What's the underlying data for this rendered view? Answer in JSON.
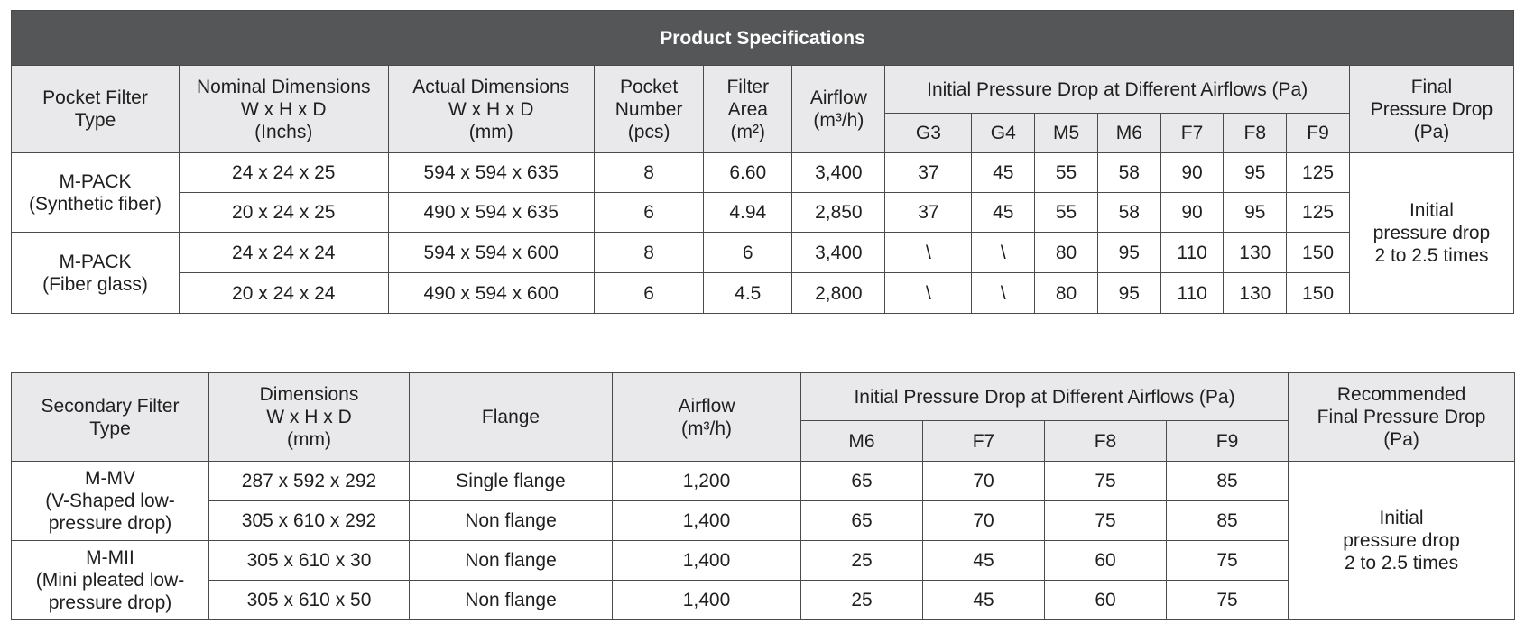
{
  "pocket_table": {
    "title": "Product Specifications",
    "headers": {
      "type": "Pocket Filter\nType",
      "nominal_dimensions": "Nominal Dimensions\nW x H x D\n(Inchs)",
      "actual_dimensions": "Actual Dimensions\nW x H x D\n(mm)",
      "pocket_number": "Pocket\nNumber\n(pcs)",
      "filter_area": "Filter\nArea\n(m²)",
      "airflow": "Airflow\n(m³/h)",
      "initial_pressure_drop": "Initial Pressure Drop at Different Airflows (Pa)",
      "final_pressure_drop": "Final\nPressure Drop\n(Pa)",
      "grades": [
        "G3",
        "G4",
        "M5",
        "M6",
        "F7",
        "F8",
        "F9"
      ]
    },
    "groups": [
      {
        "type": "M-PACK\n(Synthetic fiber)"
      },
      {
        "type": "M-PACK\n(Fiber glass)"
      }
    ],
    "rows": [
      {
        "nominal": "24 x 24 x 25",
        "actual": "594 x 594 x 635",
        "pockets": "8",
        "area": "6.60",
        "airflow": "3,400",
        "drops": [
          "37",
          "45",
          "55",
          "58",
          "90",
          "95",
          "125"
        ]
      },
      {
        "nominal": "20 x 24 x 25",
        "actual": "490 x 594 x 635",
        "pockets": "6",
        "area": "4.94",
        "airflow": "2,850",
        "drops": [
          "37",
          "45",
          "55",
          "58",
          "90",
          "95",
          "125"
        ]
      },
      {
        "nominal": "24 x 24 x 24",
        "actual": "594 x 594 x 600",
        "pockets": "8",
        "area": "6",
        "airflow": "3,400",
        "drops": [
          "\\",
          "\\",
          "80",
          "95",
          "110",
          "130",
          "150"
        ]
      },
      {
        "nominal": "20 x 24 x 24",
        "actual": "490 x 594 x 600",
        "pockets": "6",
        "area": "4.5",
        "airflow": "2,800",
        "drops": [
          "\\",
          "\\",
          "80",
          "95",
          "110",
          "130",
          "150"
        ]
      }
    ],
    "final_drop": "Initial\npressure drop\n2 to 2.5 times"
  },
  "secondary_table": {
    "headers": {
      "type": "Secondary Filter\nType",
      "dimensions": "Dimensions\nW x H x D\n(mm)",
      "flange": "Flange",
      "airflow": "Airflow\n(m³/h)",
      "initial_pressure_drop": "Initial Pressure Drop at Different Airflows (Pa)",
      "final_pressure_drop": "Recommended\nFinal Pressure Drop\n(Pa)",
      "grades": [
        "M6",
        "F7",
        "F8",
        "F9"
      ]
    },
    "groups": [
      {
        "type": "M-MV\n(V-Shaped low-\npressure drop)"
      },
      {
        "type": "M-MII\n(Mini pleated low-\npressure drop)"
      }
    ],
    "rows": [
      {
        "dimensions": "287 x 592 x 292",
        "flange": "Single flange",
        "airflow": "1,200",
        "drops": [
          "65",
          "70",
          "75",
          "85"
        ]
      },
      {
        "dimensions": "305 x 610 x 292",
        "flange": "Non flange",
        "airflow": "1,400",
        "drops": [
          "65",
          "70",
          "75",
          "85"
        ]
      },
      {
        "dimensions": "305 x 610 x 30",
        "flange": "Non flange",
        "airflow": "1,400",
        "drops": [
          "25",
          "45",
          "60",
          "75"
        ]
      },
      {
        "dimensions": "305 x 610 x 50",
        "flange": "Non flange",
        "airflow": "1,400",
        "drops": [
          "25",
          "45",
          "60",
          "75"
        ]
      }
    ],
    "final_drop": "Initial\npressure drop\n2 to 2.5 times"
  }
}
